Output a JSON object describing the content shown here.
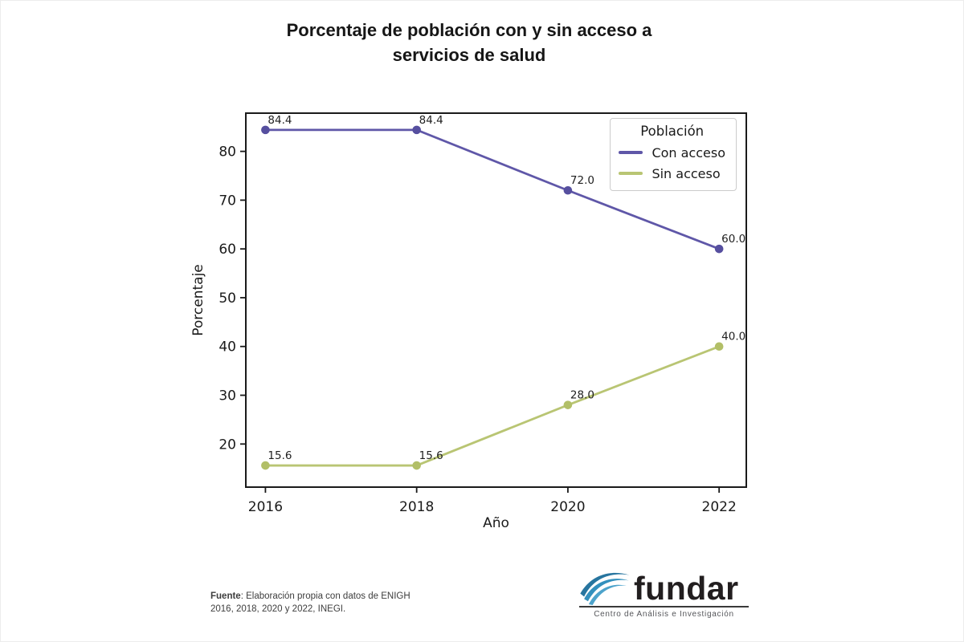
{
  "title": {
    "line1": "Porcentaje de población con y sin acceso a",
    "line2": "servicios de salud"
  },
  "chart_data": {
    "type": "line",
    "title": "Porcentaje de población con y sin acceso a servicios de salud",
    "x": [
      2016,
      2018,
      2020,
      2022
    ],
    "xlabel": "Año",
    "ylabel": "Porcentaje",
    "xlim": [
      2015.73,
      2022.37
    ],
    "ylim": [
      11.0,
      88.0
    ],
    "yticks": [
      20,
      30,
      40,
      50,
      60,
      70,
      80
    ],
    "grid": false,
    "legend": {
      "title": "Población",
      "position": "upper right"
    },
    "series": [
      {
        "name": "Con acceso",
        "color": "#5f57a8",
        "marker_color": "#564f9f",
        "values": [
          84.4,
          84.4,
          72.0,
          60.0
        ],
        "labels": [
          "84.4",
          "84.4",
          "72.0",
          "60.0"
        ]
      },
      {
        "name": "Sin acceso",
        "color": "#b9c573",
        "marker_color": "#b2bf67",
        "values": [
          15.6,
          15.6,
          28.0,
          40.0
        ],
        "labels": [
          "15.6",
          "15.6",
          "28.0",
          "40.0"
        ]
      }
    ],
    "axis_color": "#1a1a1a",
    "tick_label_color": "#1a1a1a",
    "data_label_color": "#1f1f1f"
  },
  "footer": {
    "source_bold": "Fuente",
    "source_rest": ": Elaboración propia con datos de ENIGH",
    "source_line2": "2016, 2018, 2020 y 2022, INEGI.",
    "logo": {
      "wordmark": "fundar",
      "caption": "Centro de Análisis e Investigación",
      "wave_color_dark": "#27759f",
      "wave_color_mid": "#3390bd",
      "wave_color_light": "#4da3cb"
    }
  }
}
